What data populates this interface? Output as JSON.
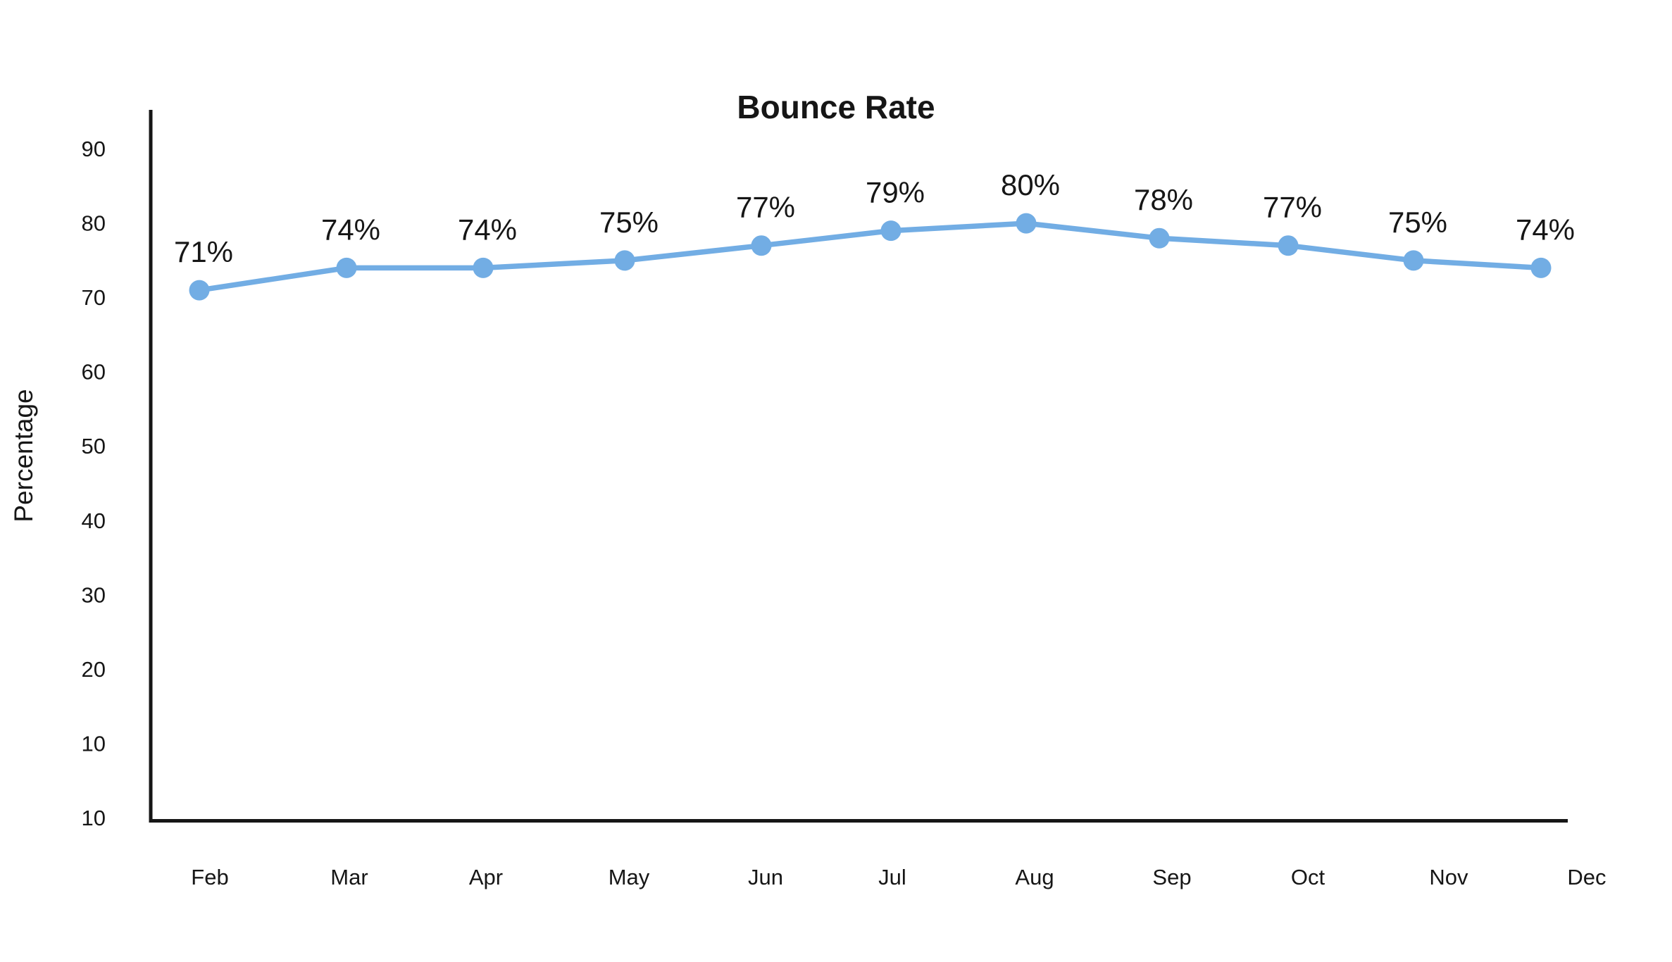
{
  "chart_data": {
    "type": "line",
    "title": "Bounce Rate",
    "ylabel": "Percentage",
    "xlabel": "",
    "categories": [
      "Feb",
      "Mar",
      "Apr",
      "May",
      "Jun",
      "Jul",
      "Aug",
      "Sep",
      "Oct",
      "Nov",
      "Dec"
    ],
    "values": [
      71,
      74,
      74,
      75,
      77,
      79,
      80,
      78,
      77,
      75,
      74
    ],
    "point_labels": [
      "71%",
      "74%",
      "74%",
      "75%",
      "77%",
      "79%",
      "80%",
      "78%",
      "77%",
      "75%",
      "74%"
    ],
    "y_tick_labels": [
      "90",
      "80",
      "70",
      "60",
      "50",
      "40",
      "30",
      "20",
      "10",
      "10"
    ],
    "ylim": [
      10,
      95
    ],
    "grid": false,
    "legend": false,
    "colors": {
      "series": "#72ade4",
      "text": "#161616",
      "axis": "#161616",
      "background": "#ffffff"
    }
  }
}
